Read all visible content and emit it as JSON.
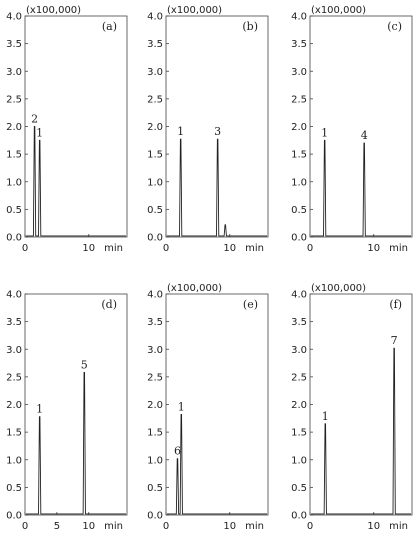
{
  "chart_data": [
    {
      "type": "line",
      "panel_label": "(a)",
      "scale_label": "(x100,000)",
      "x_unit": "min",
      "xlim": [
        0,
        16
      ],
      "ylim": [
        0,
        4.0
      ],
      "x_ticks": [
        0,
        10
      ],
      "y_ticks": [
        0.0,
        0.5,
        1.0,
        1.5,
        2.0,
        2.5,
        3.0,
        3.5,
        4.0
      ],
      "peaks": [
        {
          "label": "2",
          "x": 1.5,
          "y": 2.0
        },
        {
          "label": "1",
          "x": 2.3,
          "y": 1.75
        }
      ],
      "minor_peaks": []
    },
    {
      "type": "line",
      "panel_label": "(b)",
      "scale_label": "(x100,000)",
      "x_unit": "min",
      "xlim": [
        0,
        16
      ],
      "ylim": [
        0,
        4.0
      ],
      "x_ticks": [
        0,
        10
      ],
      "y_ticks": [
        0.0,
        0.5,
        1.0,
        1.5,
        2.0,
        2.5,
        3.0,
        3.5,
        4.0
      ],
      "peaks": [
        {
          "label": "1",
          "x": 2.3,
          "y": 1.77
        },
        {
          "label": "3",
          "x": 8.1,
          "y": 1.77
        }
      ],
      "minor_peaks": [
        {
          "x": 9.3,
          "y": 0.22
        }
      ]
    },
    {
      "type": "line",
      "panel_label": "(c)",
      "scale_label": "(x100,000)",
      "x_unit": "min",
      "xlim": [
        0,
        16
      ],
      "ylim": [
        0,
        4.0
      ],
      "x_ticks": [
        0,
        10
      ],
      "y_ticks": [
        0.0,
        0.5,
        1.0,
        1.5,
        2.0,
        2.5,
        3.0,
        3.5,
        4.0
      ],
      "peaks": [
        {
          "label": "1",
          "x": 2.3,
          "y": 1.75
        },
        {
          "label": "4",
          "x": 8.5,
          "y": 1.7
        }
      ],
      "minor_peaks": []
    },
    {
      "type": "line",
      "panel_label": "(d)",
      "scale_label": "",
      "x_unit": "min",
      "xlim": [
        0,
        16
      ],
      "ylim": [
        0,
        4.0
      ],
      "x_ticks": [
        0,
        5,
        10
      ],
      "y_ticks": [
        0.0,
        0.5,
        1.0,
        1.5,
        2.0,
        2.5,
        3.0,
        3.5,
        4.0
      ],
      "peaks": [
        {
          "label": "1",
          "x": 2.3,
          "y": 1.78
        },
        {
          "label": "5",
          "x": 9.3,
          "y": 2.58
        }
      ],
      "minor_peaks": []
    },
    {
      "type": "line",
      "panel_label": "(e)",
      "scale_label": "(x100,000)",
      "x_unit": "min",
      "xlim": [
        0,
        16
      ],
      "ylim": [
        0,
        4.0
      ],
      "x_ticks": [
        0,
        10
      ],
      "y_ticks": [
        0.0,
        0.5,
        1.0,
        1.5,
        2.0,
        2.5,
        3.0,
        3.5,
        4.0
      ],
      "peaks": [
        {
          "label": "6",
          "x": 1.8,
          "y": 1.02
        },
        {
          "label": "1",
          "x": 2.4,
          "y": 1.82
        }
      ],
      "minor_peaks": []
    },
    {
      "type": "line",
      "panel_label": "(f)",
      "scale_label": "(x100,000)",
      "x_unit": "min",
      "xlim": [
        0,
        16
      ],
      "ylim": [
        0,
        4.0
      ],
      "x_ticks": [
        0,
        10
      ],
      "y_ticks": [
        0.0,
        0.5,
        1.0,
        1.5,
        2.0,
        2.5,
        3.0,
        3.5,
        4.0
      ],
      "peaks": [
        {
          "label": "1",
          "x": 2.4,
          "y": 1.65
        },
        {
          "label": "7",
          "x": 13.2,
          "y": 3.02
        }
      ],
      "minor_peaks": []
    }
  ]
}
